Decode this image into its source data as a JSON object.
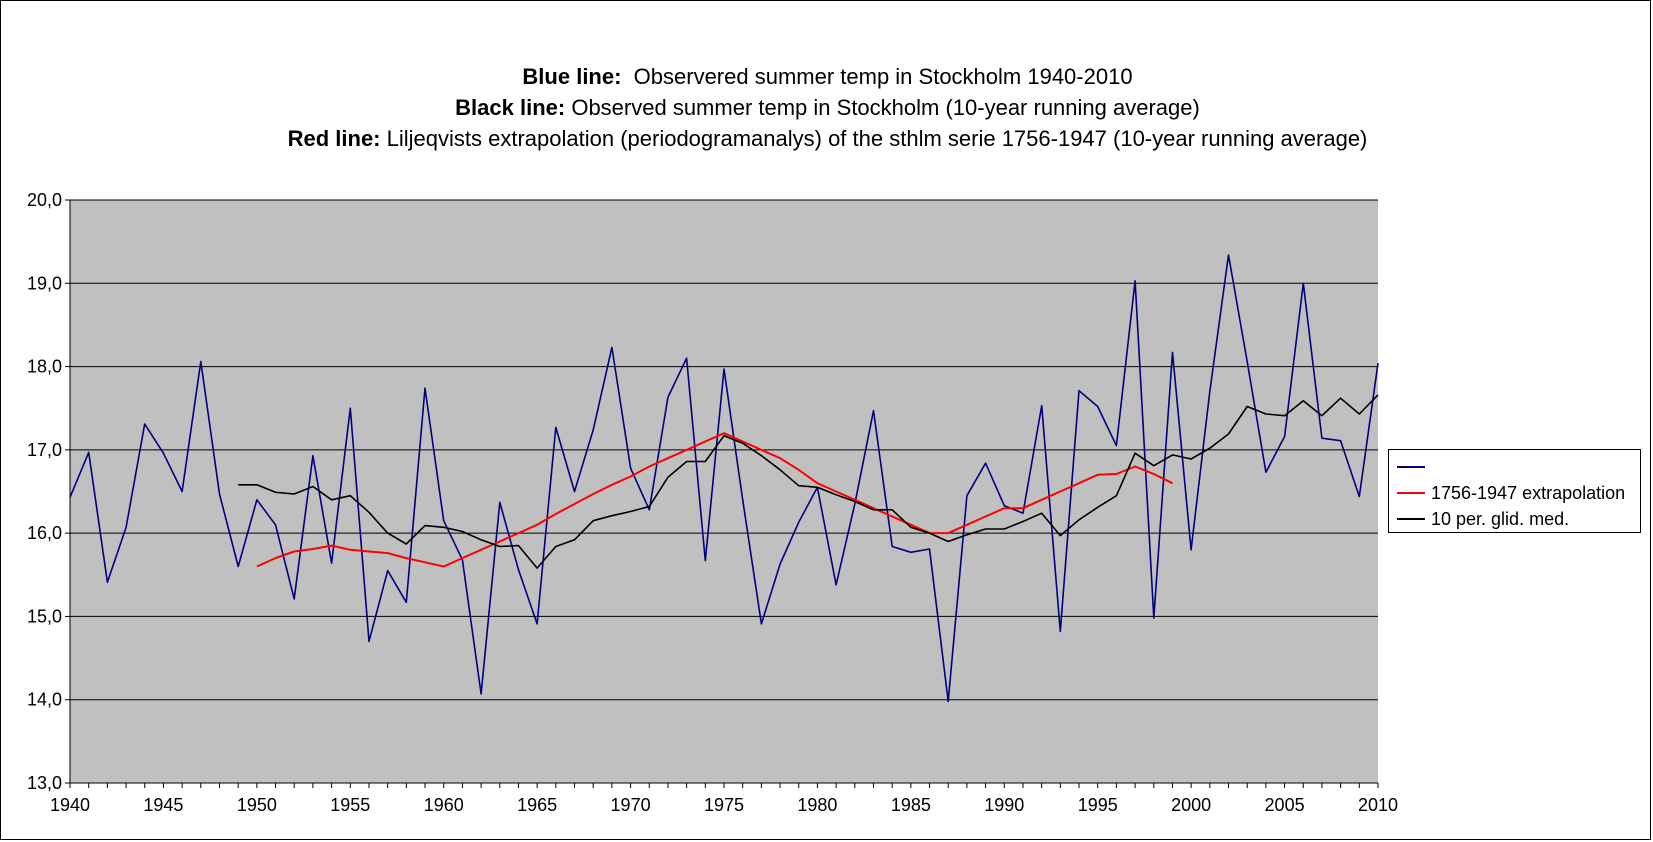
{
  "titles": [
    {
      "bold": "Blue line:",
      "rest": "  Observered summer temp in Stockholm 1940-2010"
    },
    {
      "bold": "Black line:",
      "rest": " Observed summer temp in Stockholm (10-year running average)"
    },
    {
      "bold": "Red line:",
      "rest": " Liljeqvists extrapolation (periodogramanalys) of the sthlm serie 1756-1947 (10-year running average)"
    }
  ],
  "chart_data": {
    "type": "line",
    "xlim": [
      1940,
      2010
    ],
    "ylim": [
      13.0,
      20.0
    ],
    "x_ticks": [
      "1940",
      "1945",
      "1950",
      "1955",
      "1960",
      "1965",
      "1970",
      "1975",
      "1980",
      "1985",
      "1990",
      "1995",
      "2000",
      "2005",
      "2010"
    ],
    "y_ticks": [
      "13,0",
      "14,0",
      "15,0",
      "16,0",
      "17,0",
      "18,0",
      "19,0",
      "20,0"
    ],
    "grid": true,
    "plot_background": "#c0c0c0",
    "legend_position": "right",
    "series": [
      {
        "name": "",
        "color": "#000080",
        "x": [
          1940,
          1941,
          1942,
          1943,
          1944,
          1945,
          1946,
          1947,
          1948,
          1949,
          1950,
          1951,
          1952,
          1953,
          1954,
          1955,
          1956,
          1957,
          1958,
          1959,
          1960,
          1961,
          1962,
          1963,
          1964,
          1965,
          1966,
          1967,
          1968,
          1969,
          1970,
          1971,
          1972,
          1973,
          1974,
          1975,
          1976,
          1977,
          1978,
          1979,
          1980,
          1981,
          1982,
          1983,
          1984,
          1985,
          1986,
          1987,
          1988,
          1989,
          1990,
          1991,
          1992,
          1993,
          1994,
          1995,
          1996,
          1997,
          1998,
          1999,
          2000,
          2001,
          2002,
          2003,
          2004,
          2005,
          2006,
          2007,
          2008,
          2009,
          2010
        ],
        "y": [
          16.43,
          16.97,
          15.41,
          16.07,
          17.31,
          16.96,
          16.5,
          18.06,
          16.47,
          15.6,
          16.4,
          16.1,
          15.21,
          16.93,
          15.64,
          17.5,
          14.7,
          15.55,
          15.17,
          17.74,
          16.15,
          15.68,
          14.07,
          16.37,
          15.56,
          14.91,
          17.27,
          16.5,
          17.24,
          18.23,
          16.78,
          16.28,
          17.63,
          18.1,
          15.67,
          17.97,
          16.4,
          14.91,
          15.63,
          16.13,
          16.55,
          15.38,
          16.35,
          17.47,
          15.84,
          15.77,
          15.81,
          13.98,
          16.45,
          16.84,
          16.33,
          16.24,
          17.53,
          14.82,
          17.71,
          17.52,
          17.05,
          19.03,
          14.98,
          18.17,
          15.8,
          17.7,
          19.34,
          18.06,
          16.73,
          17.16,
          19.0,
          17.14,
          17.11,
          16.44,
          18.04
        ]
      },
      {
        "name": "1756-1947 extrapolation",
        "color": "#ff0000",
        "x": [
          1950,
          1951,
          1952,
          1953,
          1954,
          1955,
          1956,
          1957,
          1958,
          1959,
          1960,
          1961,
          1962,
          1963,
          1964,
          1965,
          1966,
          1967,
          1968,
          1969,
          1970,
          1971,
          1972,
          1973,
          1974,
          1975,
          1976,
          1977,
          1978,
          1979,
          1980,
          1981,
          1982,
          1983,
          1984,
          1985,
          1986,
          1987,
          1988,
          1989,
          1990,
          1991,
          1992,
          1993,
          1994,
          1995,
          1996,
          1997,
          1998,
          1999
        ],
        "y": [
          15.6,
          15.7,
          15.78,
          15.81,
          15.85,
          15.8,
          15.78,
          15.76,
          15.7,
          15.65,
          15.6,
          15.7,
          15.8,
          15.9,
          16.0,
          16.1,
          16.23,
          16.35,
          16.47,
          16.58,
          16.68,
          16.8,
          16.9,
          17.0,
          17.1,
          17.2,
          17.1,
          17.0,
          16.9,
          16.76,
          16.6,
          16.5,
          16.4,
          16.3,
          16.2,
          16.1,
          16.0,
          16.0,
          16.1,
          16.2,
          16.3,
          16.3,
          16.4,
          16.5,
          16.6,
          16.7,
          16.71,
          16.8,
          16.71,
          16.6
        ]
      },
      {
        "name": "10 per. glid. med.",
        "color": "#000000",
        "x": [
          1949,
          1950,
          1951,
          1952,
          1953,
          1954,
          1955,
          1956,
          1957,
          1958,
          1959,
          1960,
          1961,
          1962,
          1963,
          1964,
          1965,
          1966,
          1967,
          1968,
          1969,
          1970,
          1971,
          1972,
          1973,
          1974,
          1975,
          1976,
          1977,
          1978,
          1979,
          1980,
          1981,
          1982,
          1983,
          1984,
          1985,
          1986,
          1987,
          1988,
          1989,
          1990,
          1991,
          1992,
          1993,
          1994,
          1995,
          1996,
          1997,
          1998,
          1999,
          2000,
          2001,
          2002,
          2003,
          2004,
          2005,
          2006,
          2007,
          2008,
          2009,
          2010
        ],
        "y": [
          16.58,
          16.58,
          16.49,
          16.47,
          16.56,
          16.4,
          16.45,
          16.25,
          16.0,
          15.87,
          16.09,
          16.07,
          16.02,
          15.92,
          15.84,
          15.85,
          15.58,
          15.84,
          15.92,
          16.15,
          16.21,
          16.26,
          16.32,
          16.67,
          16.86,
          16.86,
          17.17,
          17.08,
          16.93,
          16.76,
          16.57,
          16.55,
          16.46,
          16.38,
          16.28,
          16.28,
          16.07,
          16.0,
          15.9,
          15.98,
          16.05,
          16.05,
          16.14,
          16.24,
          15.97,
          16.16,
          16.31,
          16.45,
          16.96,
          16.81,
          16.94,
          16.89,
          17.02,
          17.19,
          17.52,
          17.43,
          17.41,
          17.59,
          17.41,
          17.62,
          17.43,
          17.66
        ]
      }
    ]
  }
}
